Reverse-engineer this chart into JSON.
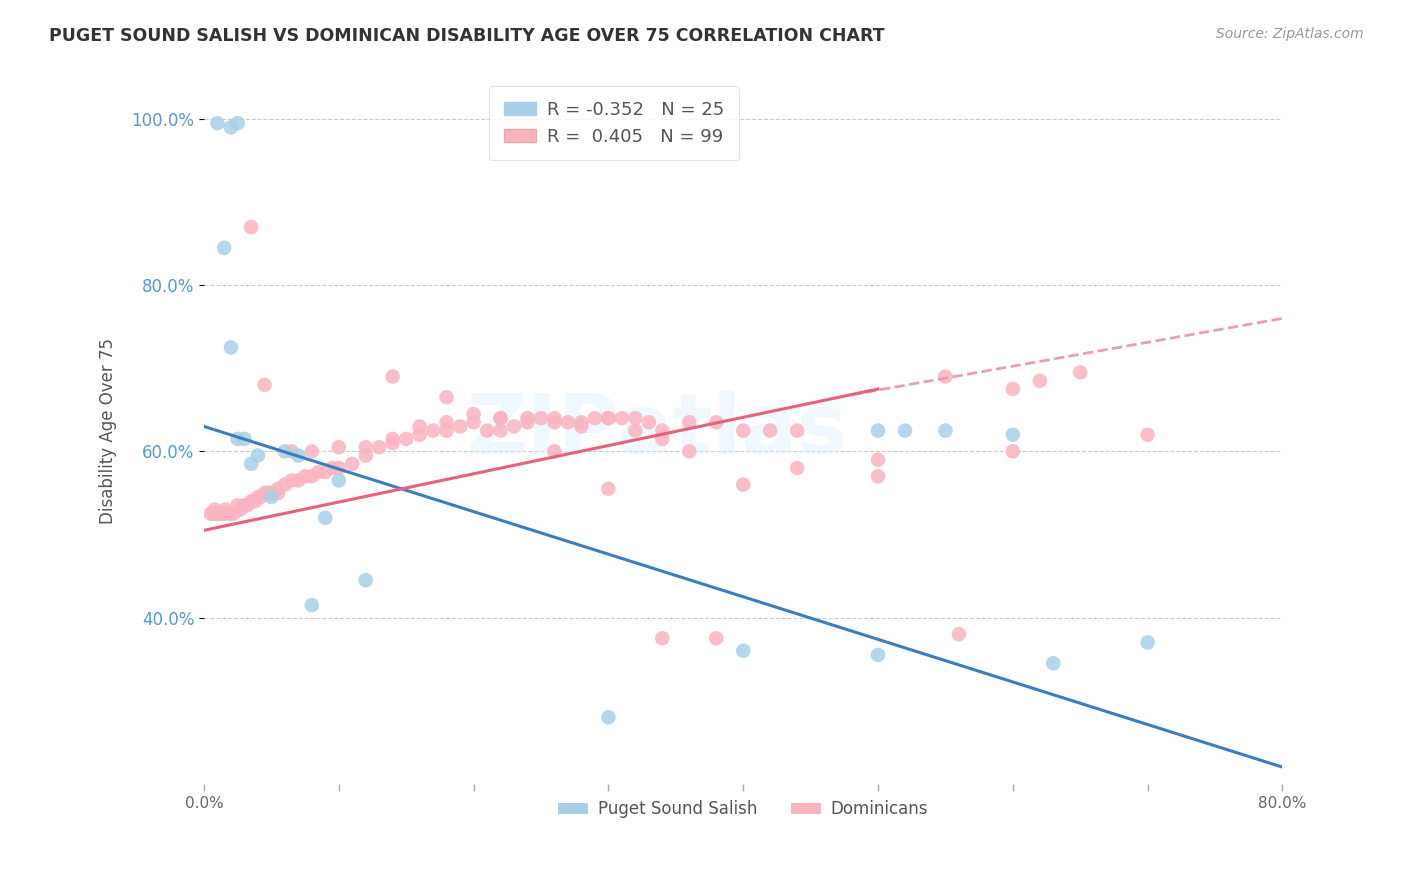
{
  "title": "PUGET SOUND SALISH VS DOMINICAN DISABILITY AGE OVER 75 CORRELATION CHART",
  "source": "Source: ZipAtlas.com",
  "ylabel": "Disability Age Over 75",
  "xlim": [
    0.0,
    0.8
  ],
  "ylim": [
    0.2,
    1.05
  ],
  "yticks": [
    0.4,
    0.6,
    0.8,
    1.0
  ],
  "ytick_labels": [
    "40.0%",
    "60.0%",
    "80.0%",
    "100.0%"
  ],
  "xticks": [
    0.0,
    0.1,
    0.2,
    0.3,
    0.4,
    0.5,
    0.6,
    0.7,
    0.8
  ],
  "xtick_labels": [
    "0.0%",
    "",
    "",
    "",
    "",
    "",
    "",
    "",
    "80.0%"
  ],
  "legend_r1": "R = -0.352",
  "legend_n1": "N = 25",
  "legend_r2": "R =  0.405",
  "legend_n2": "N = 99",
  "color_blue": "#a8cfe8",
  "color_pink": "#f9b4c0",
  "color_blue_line": "#3a7ebe",
  "color_pink_line": "#e8607a",
  "color_dashed": "#e8a0b0",
  "watermark": "ZIPatlas",
  "blue_scatter_x": [
    0.01,
    0.02,
    0.025,
    0.015,
    0.02,
    0.025,
    0.03,
    0.035,
    0.04,
    0.05,
    0.06,
    0.07,
    0.09,
    0.5,
    0.52,
    0.55,
    0.6,
    0.63,
    0.4,
    0.3,
    0.1,
    0.12,
    0.08,
    0.7,
    0.5
  ],
  "blue_scatter_y": [
    0.995,
    0.99,
    0.995,
    0.845,
    0.725,
    0.615,
    0.615,
    0.585,
    0.595,
    0.545,
    0.6,
    0.595,
    0.52,
    0.625,
    0.625,
    0.625,
    0.62,
    0.345,
    0.36,
    0.28,
    0.565,
    0.445,
    0.415,
    0.37,
    0.355
  ],
  "pink_scatter_x": [
    0.005,
    0.007,
    0.008,
    0.009,
    0.01,
    0.012,
    0.014,
    0.015,
    0.016,
    0.018,
    0.02,
    0.022,
    0.025,
    0.027,
    0.03,
    0.032,
    0.035,
    0.038,
    0.04,
    0.042,
    0.045,
    0.048,
    0.05,
    0.055,
    0.06,
    0.065,
    0.07,
    0.075,
    0.08,
    0.085,
    0.09,
    0.095,
    0.1,
    0.11,
    0.12,
    0.13,
    0.14,
    0.15,
    0.16,
    0.17,
    0.18,
    0.19,
    0.2,
    0.21,
    0.22,
    0.23,
    0.24,
    0.25,
    0.26,
    0.27,
    0.28,
    0.29,
    0.3,
    0.31,
    0.32,
    0.33,
    0.34,
    0.36,
    0.38,
    0.4,
    0.42,
    0.44,
    0.5,
    0.55,
    0.6,
    0.62,
    0.65,
    0.7,
    0.035,
    0.045,
    0.055,
    0.065,
    0.08,
    0.1,
    0.12,
    0.14,
    0.16,
    0.18,
    0.2,
    0.22,
    0.24,
    0.26,
    0.28,
    0.3,
    0.32,
    0.34,
    0.36,
    0.4,
    0.44,
    0.5,
    0.56,
    0.6,
    0.14,
    0.18,
    0.22,
    0.26,
    0.3,
    0.34,
    0.38
  ],
  "pink_scatter_y": [
    0.525,
    0.525,
    0.53,
    0.525,
    0.525,
    0.525,
    0.525,
    0.525,
    0.53,
    0.525,
    0.525,
    0.525,
    0.535,
    0.53,
    0.535,
    0.535,
    0.54,
    0.54,
    0.545,
    0.545,
    0.55,
    0.55,
    0.55,
    0.555,
    0.56,
    0.565,
    0.565,
    0.57,
    0.57,
    0.575,
    0.575,
    0.58,
    0.58,
    0.585,
    0.595,
    0.605,
    0.615,
    0.615,
    0.62,
    0.625,
    0.625,
    0.63,
    0.635,
    0.625,
    0.625,
    0.63,
    0.635,
    0.64,
    0.64,
    0.635,
    0.63,
    0.64,
    0.64,
    0.64,
    0.64,
    0.635,
    0.625,
    0.635,
    0.635,
    0.625,
    0.625,
    0.625,
    0.59,
    0.69,
    0.675,
    0.685,
    0.695,
    0.62,
    0.87,
    0.68,
    0.55,
    0.6,
    0.6,
    0.605,
    0.605,
    0.61,
    0.63,
    0.635,
    0.645,
    0.64,
    0.64,
    0.635,
    0.635,
    0.64,
    0.625,
    0.615,
    0.6,
    0.56,
    0.58,
    0.57,
    0.38,
    0.6,
    0.69,
    0.665,
    0.64,
    0.6,
    0.555,
    0.375,
    0.375
  ],
  "blue_line_x": [
    0.0,
    0.8
  ],
  "blue_line_y": [
    0.63,
    0.22
  ],
  "pink_line_x": [
    0.0,
    0.5
  ],
  "pink_line_y": [
    0.505,
    0.675
  ],
  "dashed_line_x": [
    0.48,
    0.8
  ],
  "dashed_line_y": [
    0.668,
    0.76
  ]
}
